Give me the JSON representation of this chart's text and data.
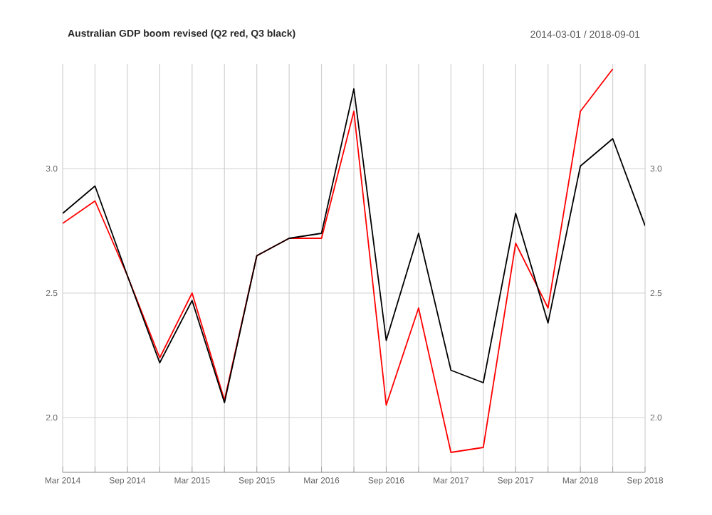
{
  "chart_data": {
    "type": "line",
    "title": "Australian GDP boom revised (Q2 red, Q3 black)",
    "subtitle": "2014-03-01 / 2018-09-01",
    "categories": [
      "Mar 2014",
      null,
      "Sep 2014",
      null,
      "Mar 2015",
      null,
      "Sep 2015",
      null,
      "Mar 2016",
      null,
      "Sep 2016",
      null,
      "Mar 2017",
      null,
      "Sep 2017",
      null,
      "Mar 2018",
      null,
      "Sep 2018"
    ],
    "series": [
      {
        "color": "#ff0000",
        "values": [
          2.78,
          2.87,
          2.57,
          2.24,
          2.5,
          2.07,
          2.65,
          2.72,
          2.72,
          3.23,
          2.05,
          2.44,
          1.86,
          1.88,
          2.7,
          2.44,
          3.23,
          3.4,
          null
        ]
      },
      {
        "color": "#000000",
        "values": [
          2.82,
          2.93,
          2.57,
          2.22,
          2.47,
          2.06,
          2.65,
          2.72,
          2.74,
          3.32,
          2.31,
          2.74,
          2.19,
          2.14,
          2.82,
          2.38,
          3.01,
          3.12,
          2.77
        ]
      }
    ],
    "ylim": [
      1.78,
      3.42
    ],
    "yticks": [
      {
        "value": 2,
        "label": "2.0"
      },
      {
        "value": 2.5,
        "label": "2.5"
      },
      {
        "value": 3,
        "label": "3.0"
      }
    ],
    "y2lim": [
      1.78,
      3.42
    ],
    "y2ticks": [
      {
        "value": 2,
        "label": "2.0"
      },
      {
        "value": 2.5,
        "label": "2.5"
      },
      {
        "value": 3,
        "label": "3.0"
      }
    ],
    "grid": true,
    "marker": "none",
    "line_style": "solid"
  }
}
